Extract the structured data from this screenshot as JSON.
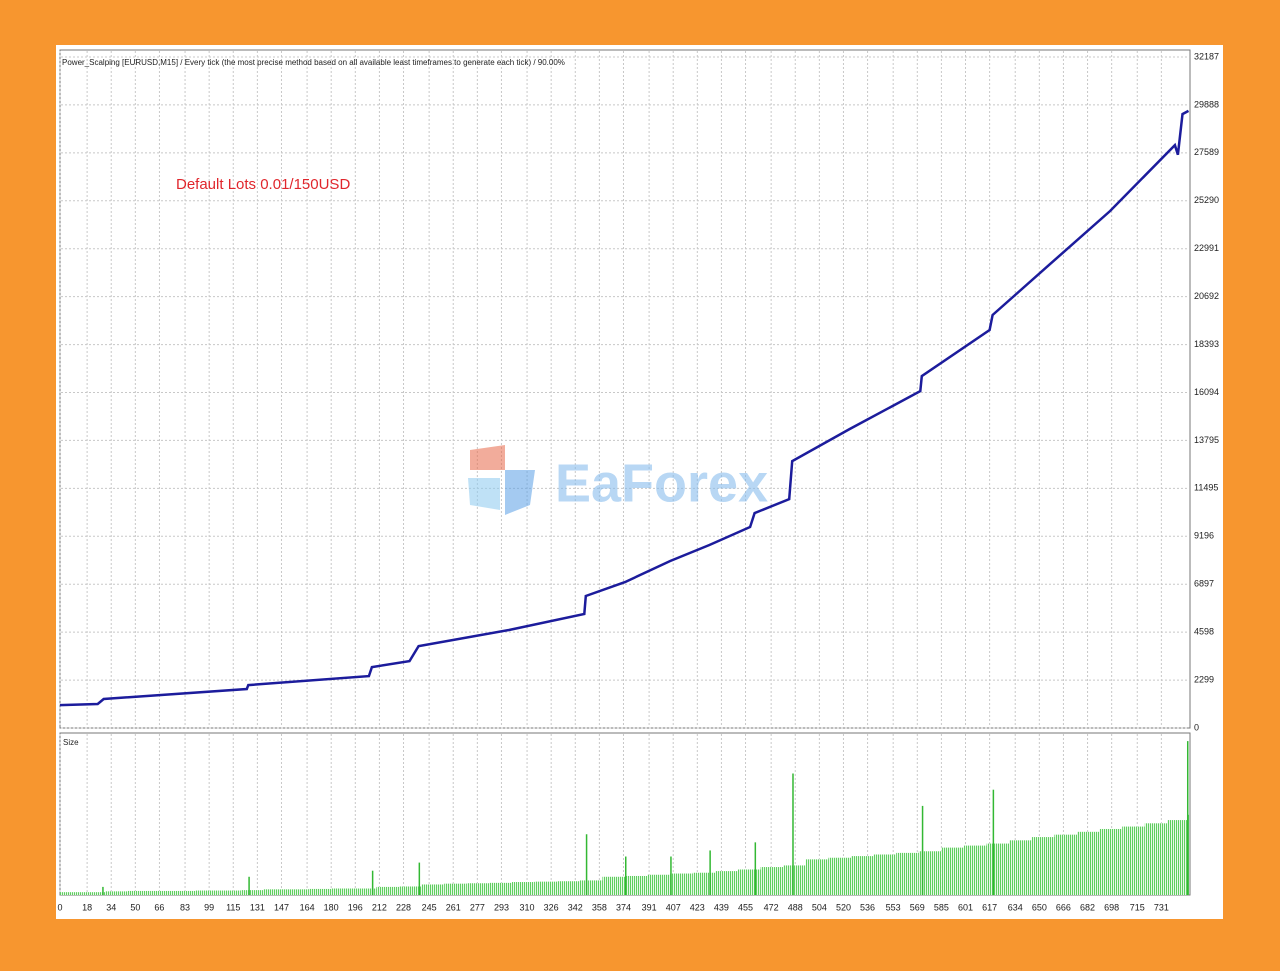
{
  "chart_data": [
    {
      "type": "line",
      "title": "Power_Scalping [EURUSD,M15] / Every tick (the most precise method based on all available least timeframes to generate each tick) / 90.00%",
      "annotation": "Default  Lots 0.01/150USD",
      "watermark": "EaForex",
      "x": [
        0,
        25,
        29,
        124,
        125,
        205,
        207,
        232,
        238,
        298,
        348,
        349,
        375,
        405,
        431,
        458,
        461,
        484,
        486,
        524,
        571,
        572,
        617,
        619,
        657,
        697,
        740,
        742,
        745,
        749
      ],
      "series": [
        {
          "color": "#1c1c9c",
          "values": [
            1100,
            1150,
            1390,
            1870,
            2060,
            2490,
            2920,
            3210,
            3930,
            4700,
            5470,
            6330,
            7000,
            8010,
            8780,
            9640,
            10310,
            10980,
            12800,
            14340,
            16160,
            16880,
            19090,
            19810,
            22250,
            24800,
            27960,
            27500,
            29450,
            29600
          ]
        }
      ],
      "xlim": [
        0,
        750
      ],
      "ylim": [
        0,
        32523
      ],
      "yticks": [
        0,
        2299,
        4598,
        6897,
        9196,
        11495,
        13795,
        16094,
        18393,
        20692,
        22991,
        25290,
        27589,
        29888,
        32187
      ],
      "grid": true
    },
    {
      "type": "bar",
      "label": "Size",
      "x": [
        0,
        15,
        30,
        45,
        60,
        75,
        90,
        105,
        120,
        135,
        150,
        165,
        180,
        195,
        210,
        225,
        240,
        255,
        270,
        285,
        300,
        315,
        330,
        345,
        360,
        375,
        390,
        405,
        420,
        435,
        450,
        465,
        480,
        495,
        510,
        525,
        540,
        555,
        570,
        585,
        600,
        615,
        630,
        645,
        660,
        675,
        690,
        705,
        720,
        735,
        748
      ],
      "series": [
        {
          "color": "#5fcf5f",
          "values": [
            0.07,
            0.07,
            0.09,
            0.1,
            0.1,
            0.1,
            0.11,
            0.11,
            0.12,
            0.14,
            0.14,
            0.15,
            0.16,
            0.16,
            0.2,
            0.21,
            0.26,
            0.28,
            0.29,
            0.3,
            0.32,
            0.33,
            0.34,
            0.36,
            0.45,
            0.47,
            0.5,
            0.53,
            0.55,
            0.59,
            0.63,
            0.69,
            0.73,
            0.88,
            0.92,
            0.96,
            1.0,
            1.04,
            1.08,
            1.17,
            1.22,
            1.27,
            1.35,
            1.43,
            1.49,
            1.56,
            1.63,
            1.69,
            1.77,
            1.85,
            1.98
          ]
        },
        {
          "color": "#33b833",
          "x": [
            28,
            125,
            207,
            238,
            349,
            375,
            405,
            431,
            461,
            486,
            572,
            619,
            748
          ],
          "values": [
            0.2,
            0.45,
            0.6,
            0.8,
            1.5,
            0.95,
            0.95,
            1.1,
            1.3,
            3.0,
            2.2,
            2.6,
            3.8
          ]
        }
      ],
      "xlim": [
        0,
        750
      ],
      "ylim": [
        0,
        4
      ],
      "xticks": [
        0,
        18,
        34,
        50,
        66,
        83,
        99,
        115,
        131,
        147,
        164,
        180,
        196,
        212,
        228,
        245,
        261,
        277,
        293,
        310,
        326,
        342,
        358,
        374,
        391,
        407,
        423,
        439,
        455,
        472,
        488,
        504,
        520,
        536,
        553,
        569,
        585,
        601,
        617,
        634,
        650,
        666,
        682,
        698,
        715,
        731
      ],
      "grid": true
    }
  ]
}
